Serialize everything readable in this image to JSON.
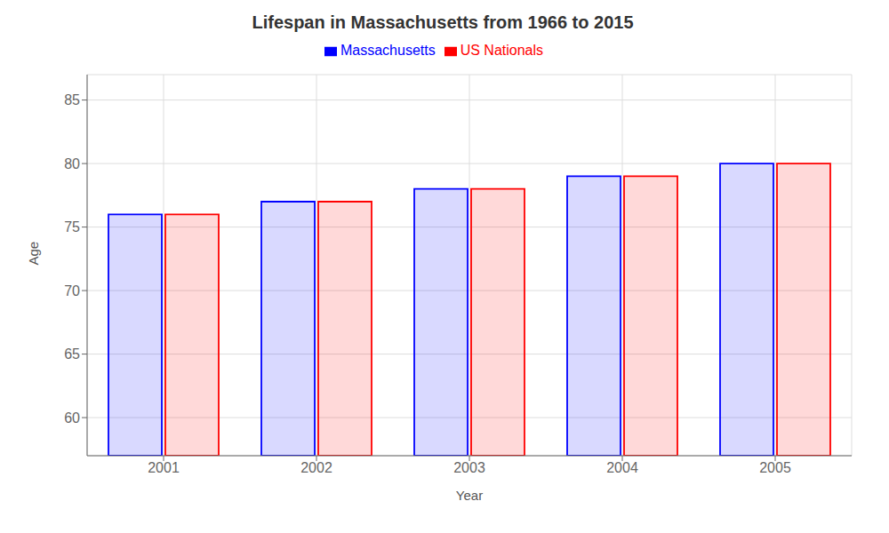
{
  "chart_data": {
    "type": "bar",
    "title": "Lifespan in Massachusetts from 1966 to 2015",
    "x_label": "Year",
    "y_label": "Age",
    "categories": [
      "2001",
      "2002",
      "2003",
      "2004",
      "2005"
    ],
    "series": [
      {
        "name": "Massachusetts",
        "color": "#0000ff",
        "values": [
          76,
          77,
          78,
          79,
          80
        ]
      },
      {
        "name": "US Nationals",
        "color": "#ff0000",
        "values": [
          76,
          77,
          78,
          79,
          80
        ]
      }
    ],
    "ylim": [
      57,
      87
    ],
    "yticks": [
      60,
      65,
      70,
      75,
      80,
      85
    ],
    "grid": true,
    "legend": "top"
  }
}
